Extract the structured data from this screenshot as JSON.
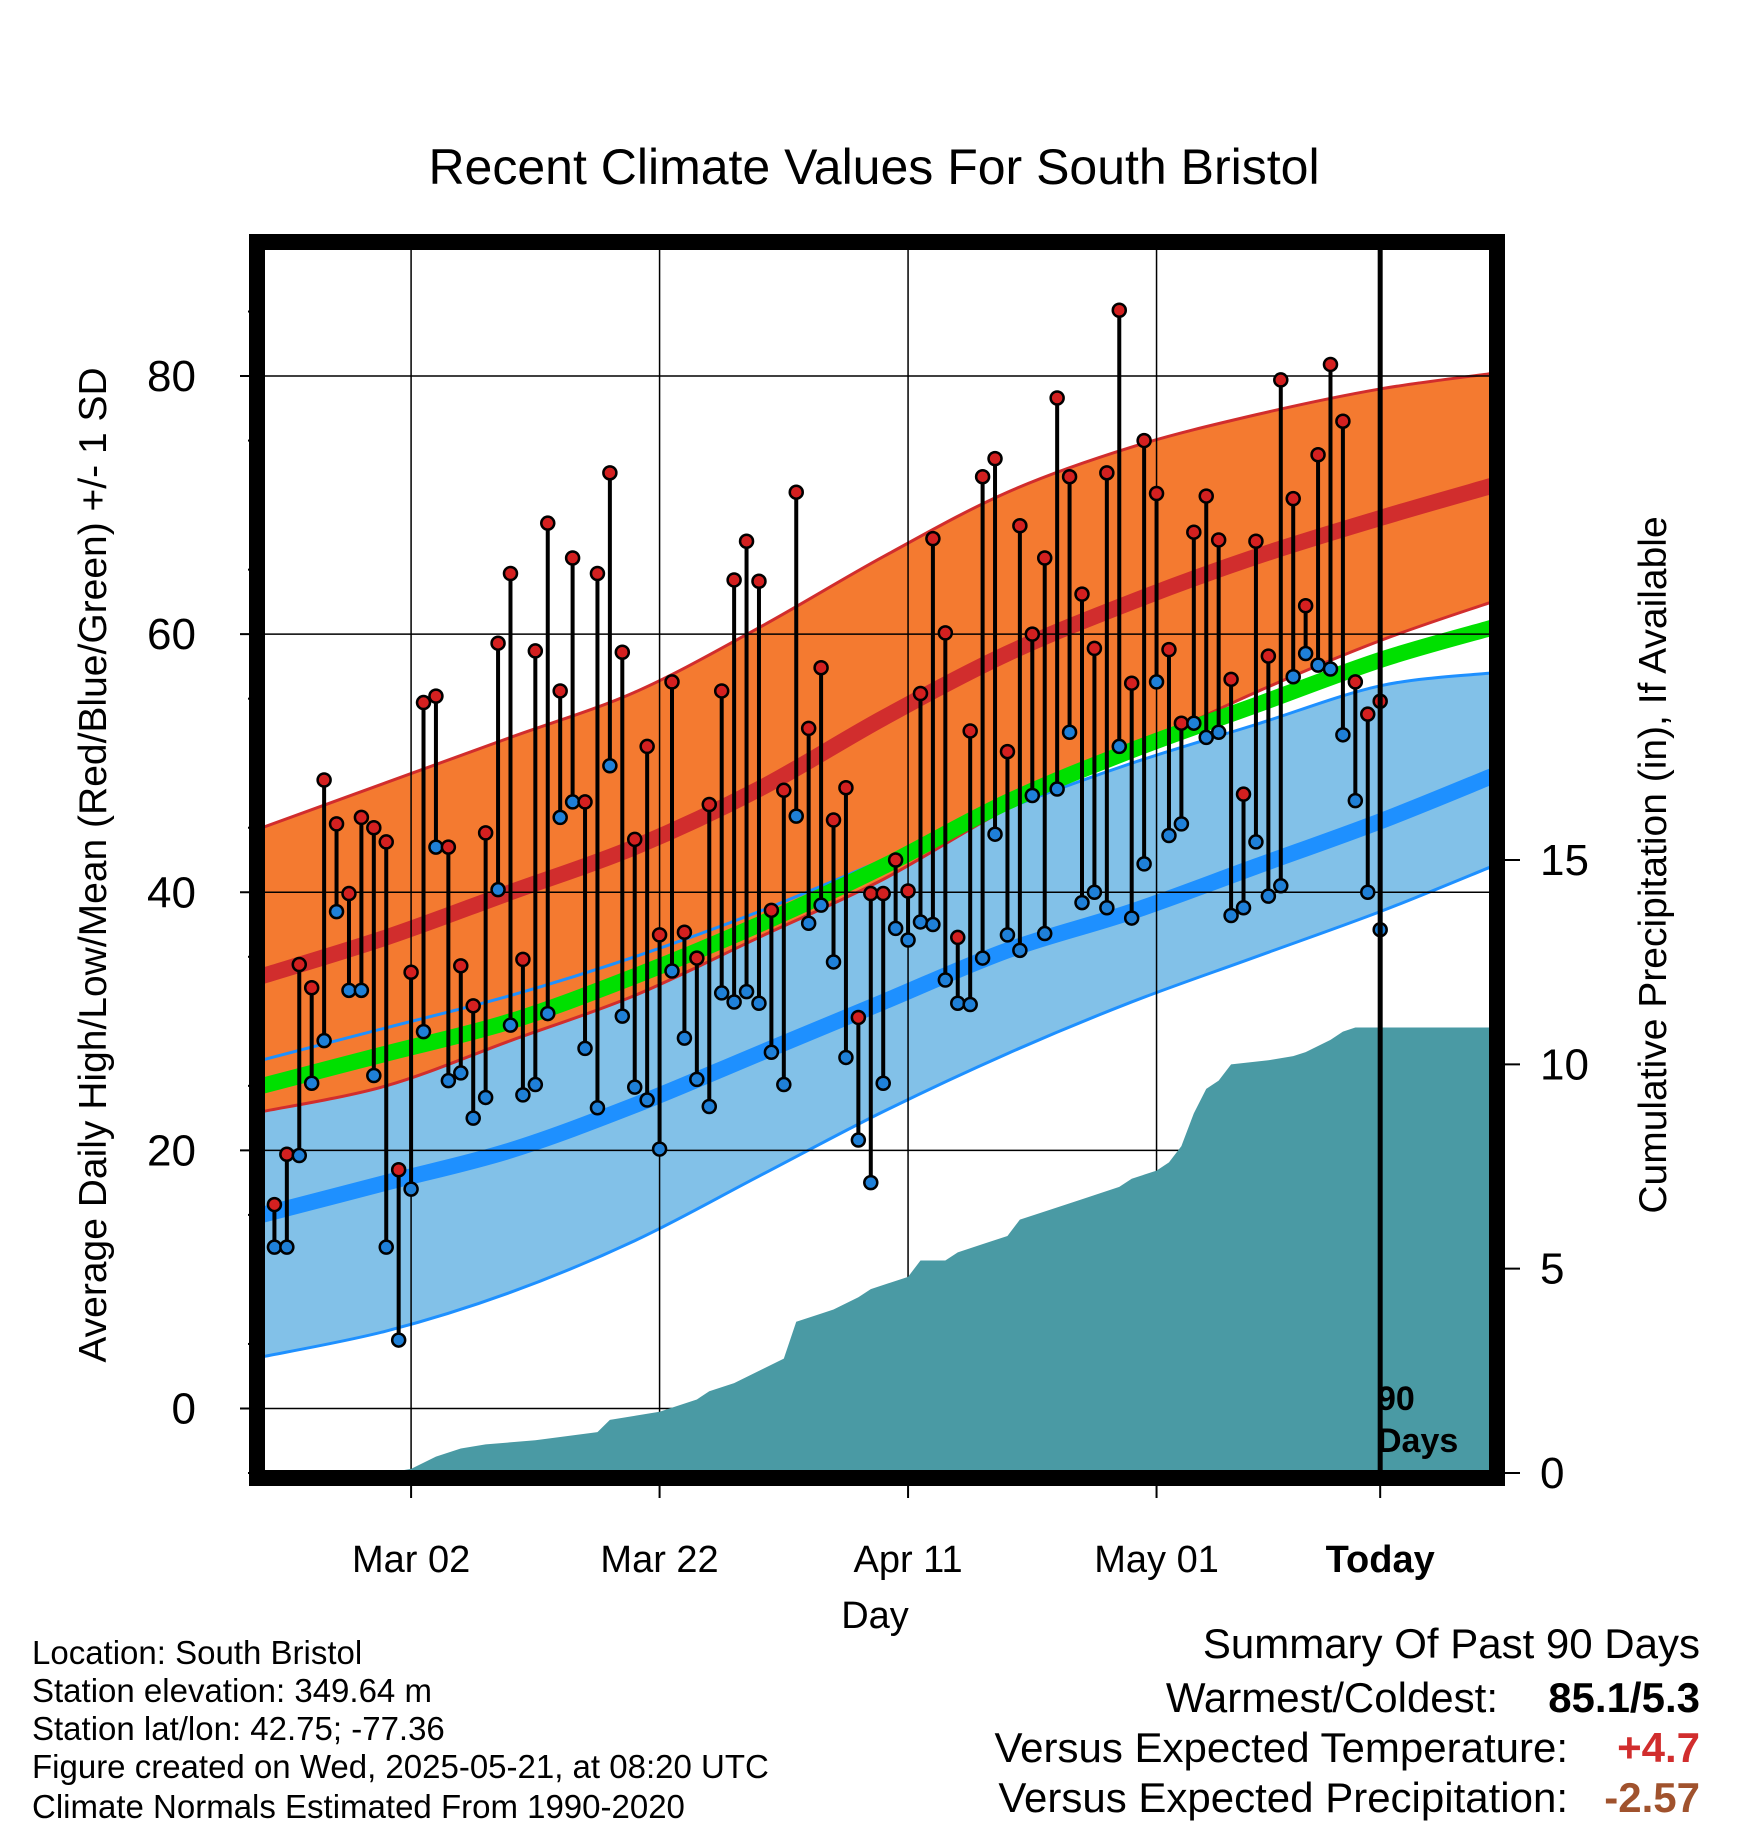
{
  "chart_data": {
    "type": "line",
    "title": "Recent Climate Values For South Bristol",
    "xlabel": "Day",
    "ylabel": "Average Daily High/Low/Mean (Red/Blue/Green) +/- 1 SD",
    "y2label": "Cumulative Precipitation (in), If Available",
    "ylim": [
      -5,
      90
    ],
    "y2lim": [
      0,
      30
    ],
    "x_range_days": [
      -90,
      9
    ],
    "x_ticks": [
      {
        "day": -78,
        "label": "Mar 02"
      },
      {
        "day": -58,
        "label": "Mar 22"
      },
      {
        "day": -38,
        "label": "Apr 11"
      },
      {
        "day": -18,
        "label": "May 01"
      },
      {
        "day": 0,
        "label": "Today"
      }
    ],
    "y_ticks": [
      0,
      20,
      40,
      60,
      80
    ],
    "y2_ticks": [
      0,
      5,
      10,
      15
    ],
    "today_marker_label": "90 Days",
    "grid": true,
    "colors": {
      "high_band": "#f47a30",
      "high_mean": "#d12d2d",
      "low_band": "#82c1e8",
      "low_mean": "#1e90ff",
      "mean": "#00e000",
      "overlap": "#8b1a1a",
      "precip": "#4a9aa4",
      "high_dot": "#d42020",
      "low_dot": "#1f80d8"
    },
    "normals": {
      "day": [
        -90,
        -80,
        -70,
        -60,
        -50,
        -40,
        -30,
        -20,
        -10,
        0,
        9
      ],
      "high_mean": [
        33.5,
        36.5,
        40.0,
        43.5,
        48.0,
        53.5,
        58.5,
        62.5,
        66.0,
        69.0,
        71.5
      ],
      "high_sd_upper": [
        45.0,
        48.5,
        52.0,
        55.5,
        60.5,
        66.0,
        71.0,
        74.5,
        77.0,
        79.0,
        80.2
      ],
      "high_sd_lower": [
        23.0,
        25.0,
        28.5,
        32.0,
        36.5,
        41.0,
        46.5,
        51.0,
        55.5,
        59.5,
        62.5
      ],
      "low_mean": [
        15.0,
        17.5,
        20.0,
        23.5,
        27.5,
        31.5,
        35.5,
        38.5,
        42.0,
        45.5,
        49.0
      ],
      "low_sd_upper": [
        27.0,
        29.5,
        32.0,
        35.0,
        38.5,
        42.5,
        46.5,
        50.0,
        53.0,
        56.0,
        57.0
      ],
      "low_sd_lower": [
        4.0,
        6.0,
        9.0,
        13.0,
        18.0,
        23.0,
        27.5,
        31.5,
        35.0,
        38.5,
        42.0
      ],
      "mean": [
        25.0,
        27.5,
        30.0,
        33.5,
        37.5,
        42.0,
        47.0,
        51.0,
        54.5,
        58.0,
        60.5
      ]
    },
    "observed": {
      "day": [
        -89,
        -88,
        -87,
        -86,
        -85,
        -84,
        -83,
        -82,
        -81,
        -80,
        -79,
        -78,
        -77,
        -76,
        -75,
        -74,
        -73,
        -72,
        -71,
        -70,
        -69,
        -68,
        -67,
        -66,
        -65,
        -64,
        -63,
        -62,
        -61,
        -60,
        -59,
        -58,
        -57,
        -56,
        -55,
        -54,
        -53,
        -52,
        -51,
        -50,
        -49,
        -48,
        -47,
        -46,
        -45,
        -44,
        -43,
        -42,
        -41,
        -40,
        -39,
        -38,
        -37,
        -36,
        -35,
        -34,
        -33,
        -32,
        -31,
        -30,
        -29,
        -28,
        -27,
        -26,
        -25,
        -24,
        -23,
        -22,
        -21,
        -20,
        -19,
        -18,
        -17,
        -16,
        -15,
        -14,
        -13,
        -12,
        -11,
        -10,
        -9,
        -8,
        -7,
        -6,
        -5,
        -4,
        -3,
        -2,
        -1,
        0
      ],
      "high": [
        15.8,
        19.7,
        34.4,
        32.6,
        48.7,
        45.3,
        39.9,
        45.8,
        45.0,
        43.9,
        18.5,
        33.8,
        54.7,
        55.2,
        43.5,
        34.3,
        31.2,
        44.6,
        59.3,
        64.7,
        34.8,
        58.7,
        68.6,
        55.6,
        65.9,
        47.0,
        64.7,
        72.5,
        58.6,
        44.1,
        51.3,
        36.7,
        56.3,
        36.9,
        34.9,
        46.8,
        55.6,
        64.2,
        67.2,
        64.1,
        38.6,
        47.9,
        71.0,
        52.7,
        57.4,
        45.6,
        48.1,
        30.3,
        39.9,
        39.9,
        42.5,
        40.1,
        55.4,
        67.4,
        60.1,
        36.5,
        52.5,
        72.2,
        73.6,
        50.9,
        68.4,
        60.0,
        65.9,
        78.3,
        72.2,
        63.1,
        58.9,
        72.5,
        85.1,
        56.2,
        75.0,
        70.9,
        58.8,
        53.1,
        67.9,
        70.7,
        67.3,
        56.5,
        47.6,
        67.2,
        58.3,
        79.7,
        70.5,
        62.2,
        73.9,
        80.9,
        76.5,
        56.3,
        53.8,
        54.8
      ],
      "low": [
        12.5,
        12.5,
        19.6,
        25.2,
        28.5,
        38.5,
        32.4,
        32.4,
        25.8,
        12.5,
        5.3,
        17.0,
        29.2,
        43.5,
        25.4,
        26.0,
        22.5,
        24.1,
        40.2,
        29.7,
        24.3,
        25.1,
        30.6,
        45.8,
        47.0,
        27.9,
        23.3,
        49.8,
        30.4,
        24.9,
        23.9,
        20.1,
        33.9,
        28.7,
        25.5,
        23.4,
        32.2,
        31.5,
        32.3,
        31.4,
        27.6,
        25.1,
        45.9,
        37.6,
        39.0,
        34.6,
        27.2,
        20.8,
        17.5,
        25.2,
        37.2,
        36.3,
        37.7,
        37.5,
        33.2,
        31.4,
        31.3,
        34.9,
        44.5,
        36.7,
        35.5,
        47.5,
        36.8,
        48.0,
        52.4,
        39.2,
        40.0,
        38.8,
        51.3,
        38.0,
        42.2,
        56.3,
        44.4,
        45.3,
        53.1,
        52.0,
        52.4,
        38.2,
        38.8,
        43.9,
        39.7,
        40.5,
        56.7,
        58.5,
        57.6,
        57.3,
        52.2,
        47.1,
        40.0,
        37.1
      ]
    },
    "precip_cumulative": {
      "day": [
        -90,
        -80,
        -78,
        -76,
        -74,
        -72,
        -68,
        -63,
        -62,
        -58,
        -55,
        -54,
        -52,
        -48,
        -47,
        -45,
        -44,
        -42,
        -41,
        -38,
        -37,
        -35,
        -34,
        -32,
        -30,
        -29,
        -27,
        -24,
        -23,
        -21,
        -20,
        -18,
        -17,
        -16,
        -15,
        -14,
        -13,
        -12,
        -9,
        -7,
        -6,
        -4,
        -3,
        -2,
        9
      ],
      "value": [
        0.0,
        0.0,
        0.1,
        0.4,
        0.6,
        0.7,
        0.8,
        1.0,
        1.3,
        1.5,
        1.8,
        2.0,
        2.2,
        2.8,
        3.7,
        3.9,
        4.0,
        4.3,
        4.5,
        4.8,
        5.2,
        5.2,
        5.4,
        5.6,
        5.8,
        6.2,
        6.4,
        6.7,
        6.8,
        7.0,
        7.2,
        7.4,
        7.6,
        8.0,
        8.8,
        9.4,
        9.6,
        10.0,
        10.1,
        10.2,
        10.3,
        10.6,
        10.8,
        10.9,
        10.9
      ]
    }
  },
  "meta": {
    "location": "Location: South Bristol",
    "elevation": "Station elevation: 349.64 m",
    "latlon": "Station lat/lon: 42.75; -77.36",
    "created": "Figure created on Wed, 2025-05-21, at 08:20 UTC",
    "normals": "Climate Normals Estimated From 1990-2020"
  },
  "summary": {
    "heading": "Summary Of Past 90 Days",
    "warm_cold_label": "Warmest/Coldest:",
    "warm_cold_value": "85.1/5.3",
    "temp_label": "Versus Expected Temperature:",
    "temp_value": "+4.7",
    "temp_color": "#d12d2d",
    "precip_label": "Versus Expected Precipitation:",
    "precip_value": "-2.57",
    "precip_color": "#a0522d"
  }
}
